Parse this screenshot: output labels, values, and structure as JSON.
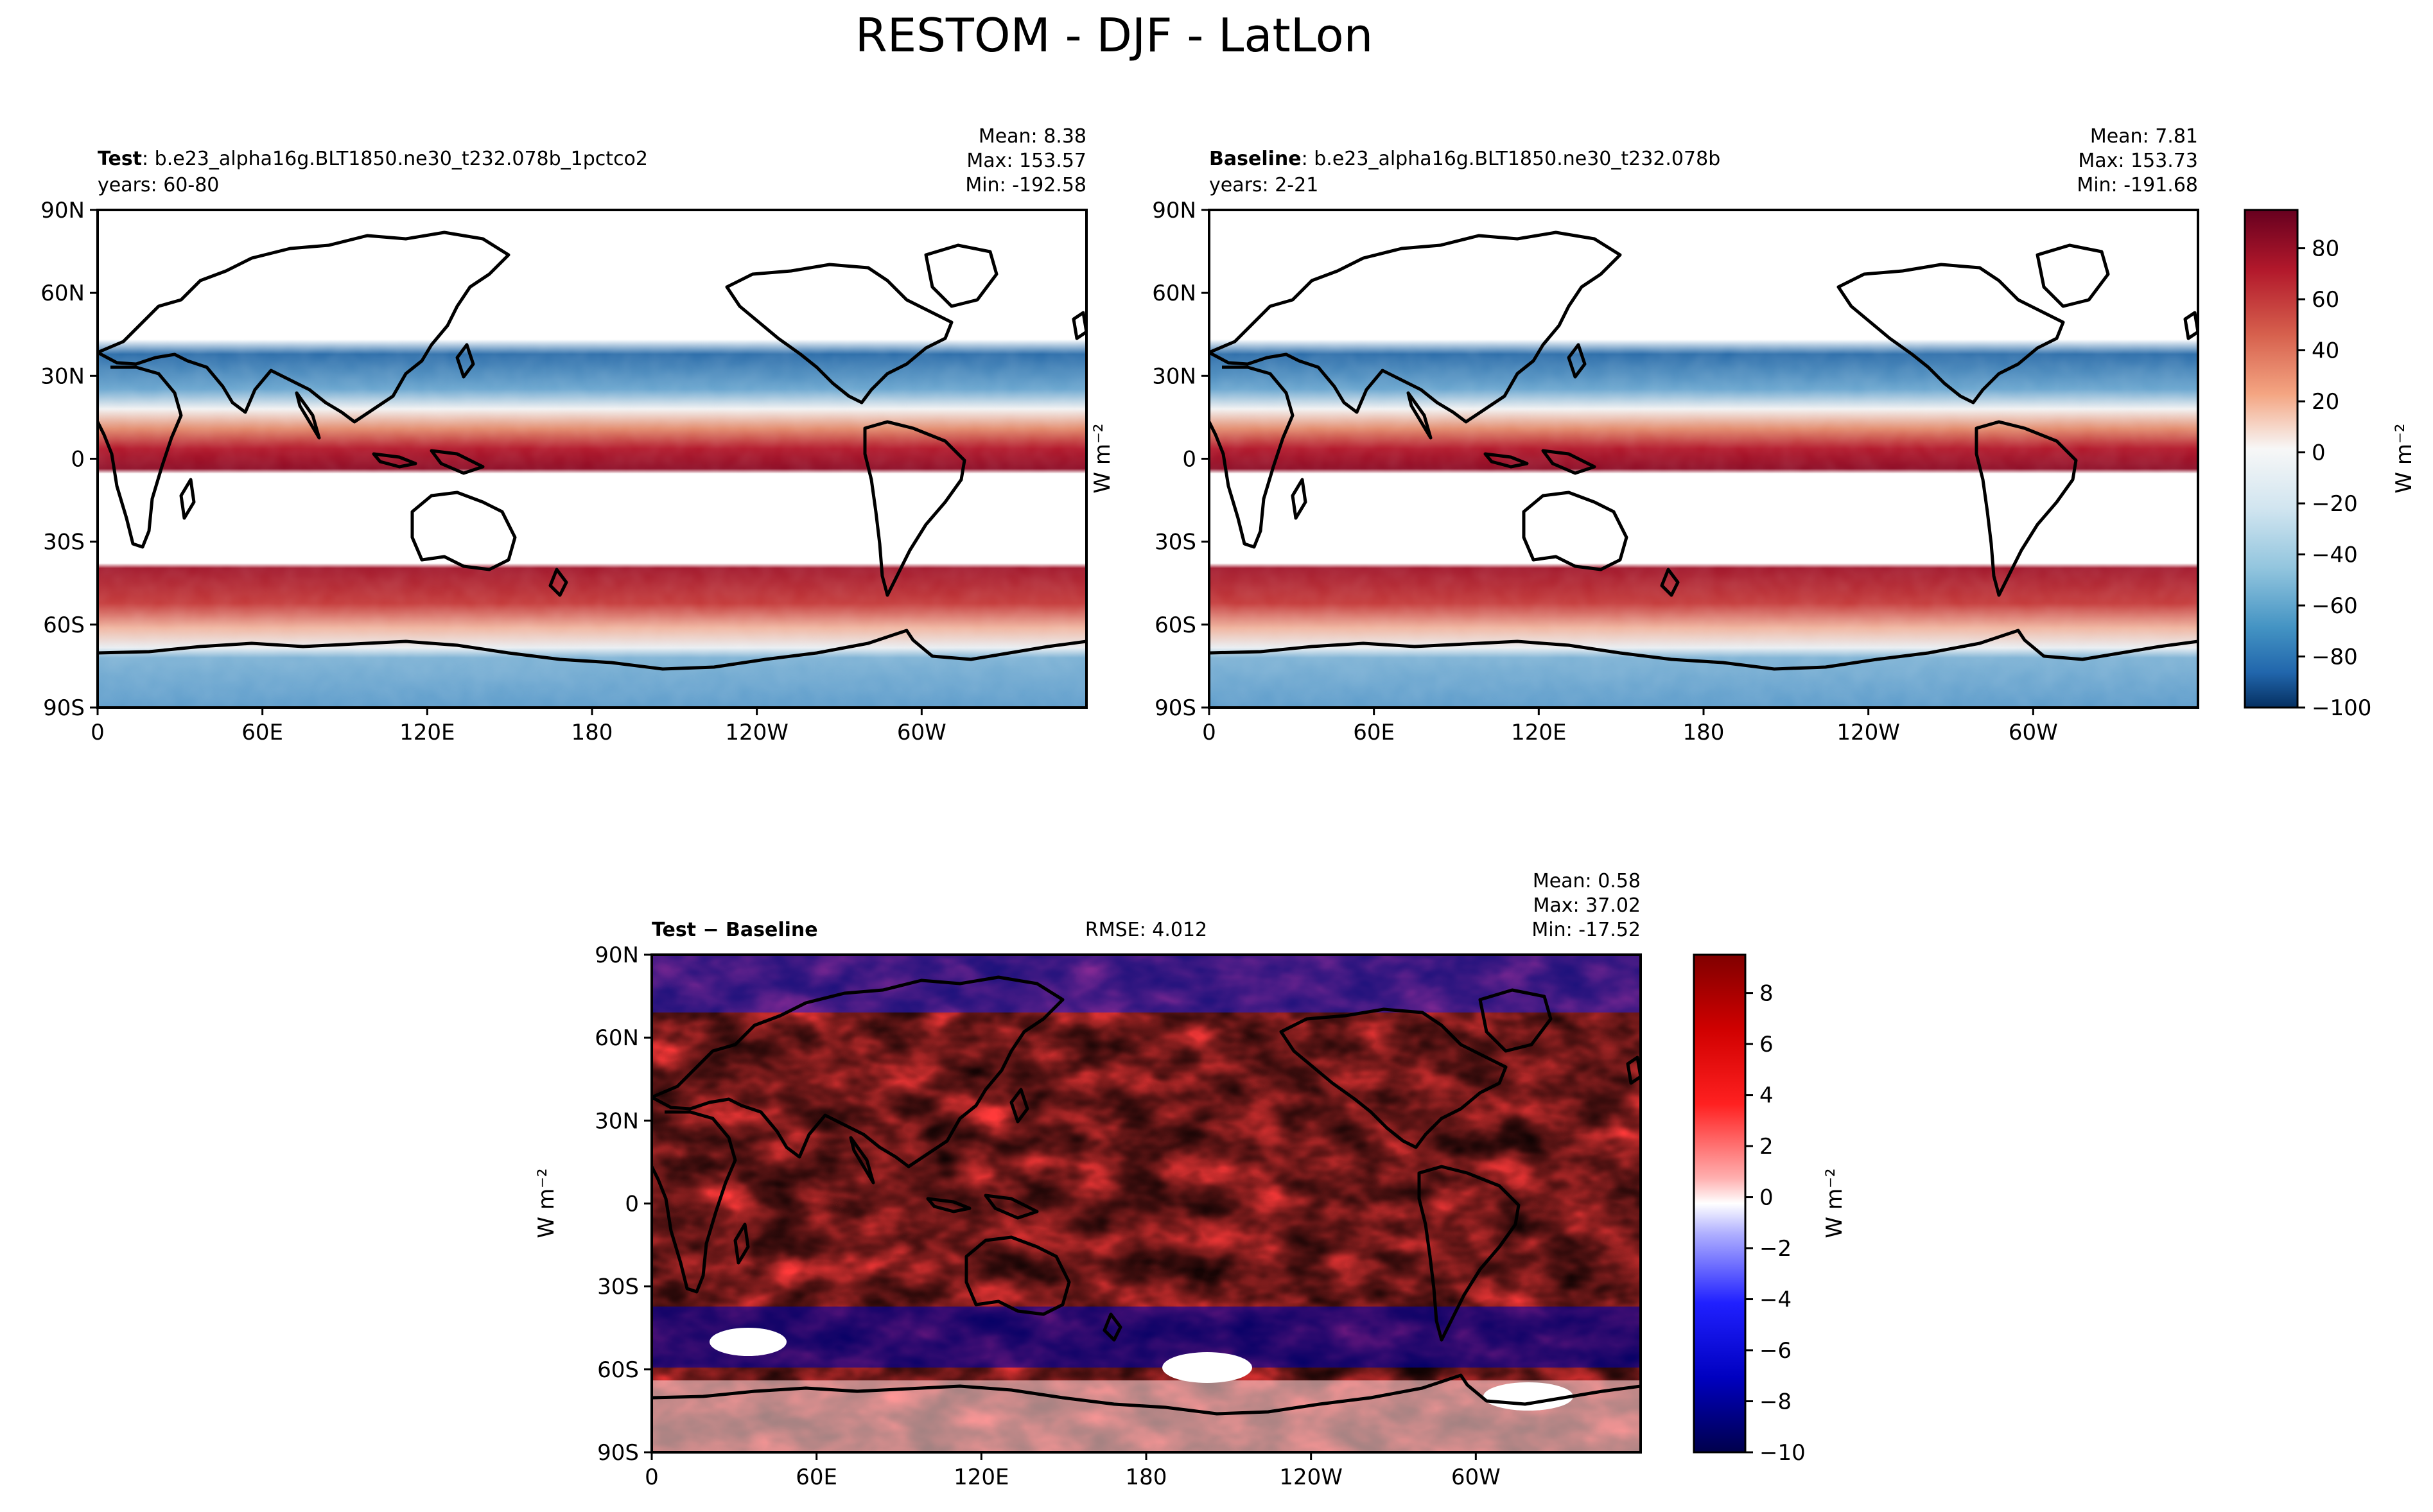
{
  "title": "RESTOM - DJF - LatLon",
  "panels": {
    "test": {
      "label_bold": "Test",
      "label_rest": ": b.e23_alpha16g.BLT1850.ne30_t232.078b_1pctco2",
      "years": "years: 60-80",
      "mean": "Mean:  8.38",
      "max": "Max: 153.57",
      "min": "Min: -192.58"
    },
    "baseline": {
      "label_bold": "Baseline",
      "label_rest": ": b.e23_alpha16g.BLT1850.ne30_t232.078b",
      "years": "years: 2-21",
      "mean": "Mean:  7.81",
      "max": "Max: 153.73",
      "min": "Min: -191.68"
    },
    "diff": {
      "label": "Test − Baseline",
      "rmse": "RMSE: 4.012",
      "mean": "Mean:  0.58",
      "max": "Max: 37.02",
      "min": "Min: -17.52"
    }
  },
  "axes": {
    "lat_ticks": [
      "90N",
      "60N",
      "30N",
      "0",
      "30S",
      "60S",
      "90S"
    ],
    "lon_ticks": [
      "0",
      "60E",
      "120E",
      "180",
      "120W",
      "60W"
    ]
  },
  "units": "W m⁻²",
  "colorbars": {
    "main": {
      "ticks": [
        "80",
        "60",
        "40",
        "20",
        "0",
        "−20",
        "−40",
        "−60",
        "−80",
        "−100"
      ],
      "range": [
        -100,
        95
      ],
      "colormap": "RdBu_r"
    },
    "diff": {
      "ticks": [
        "8",
        "6",
        "4",
        "2",
        "0",
        "−2",
        "−4",
        "−6",
        "−8",
        "−10"
      ],
      "range": [
        -10,
        9.5
      ],
      "colormap": "seismic"
    }
  },
  "colors": {
    "dark_red": "#67001f",
    "red": "#b2182b",
    "light_red": "#f4a582",
    "white": "#f7f7f7",
    "light_blue": "#92c5de",
    "blue": "#2166ac",
    "dark_blue": "#053061",
    "seismic_red": "#ff0000",
    "seismic_blue": "#0000ff",
    "seismic_dark_blue": "#00004c",
    "seismic_dark_red": "#800000"
  }
}
